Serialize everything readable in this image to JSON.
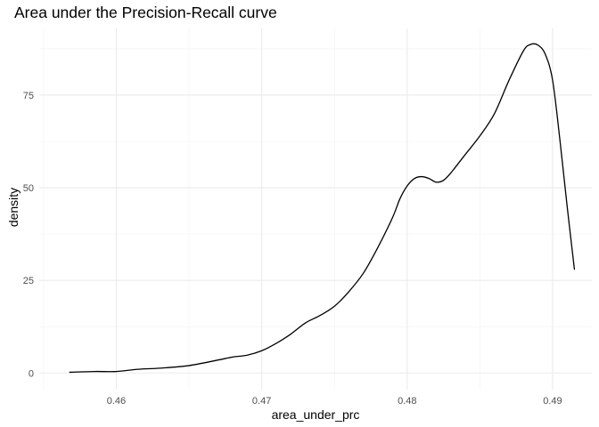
{
  "chart_data": {
    "type": "line",
    "title": "Area under the Precision-Recall curve",
    "xlabel": "area_under_prc",
    "ylabel": "density",
    "xlim": [
      0.4547,
      0.4927
    ],
    "ylim": [
      -4.5,
      93
    ],
    "x_ticks": [
      0.46,
      0.47,
      0.48,
      0.49
    ],
    "x_tick_labels": [
      "0.46",
      "0.47",
      "0.48",
      "0.49"
    ],
    "y_ticks": [
      0,
      25,
      50,
      75
    ],
    "y_tick_labels": [
      "0",
      "25",
      "50",
      "75"
    ],
    "grid": true,
    "legend": "none",
    "series": [
      {
        "color": "#000000",
        "x": [
          0.4568,
          0.4585,
          0.46,
          0.4615,
          0.463,
          0.465,
          0.467,
          0.468,
          0.469,
          0.47,
          0.471,
          0.472,
          0.473,
          0.474,
          0.475,
          0.476,
          0.477,
          0.478,
          0.479,
          0.4795,
          0.48,
          0.4805,
          0.481,
          0.4815,
          0.482,
          0.4825,
          0.483,
          0.484,
          0.485,
          0.486,
          0.487,
          0.488,
          0.4885,
          0.489,
          0.4895,
          0.49,
          0.4905,
          0.491,
          0.4915
        ],
        "y": [
          0.2,
          0.4,
          0.4,
          1.0,
          1.3,
          2.0,
          3.5,
          4.3,
          4.8,
          6.0,
          8.0,
          10.5,
          13.5,
          15.5,
          18.0,
          22.0,
          27.0,
          34.0,
          42.0,
          47.0,
          50.5,
          52.5,
          53.0,
          52.5,
          51.5,
          52.0,
          54.0,
          59.0,
          64.0,
          70.0,
          79.0,
          87.0,
          88.7,
          88.5,
          86.0,
          79.0,
          63.0,
          45.0,
          28.0
        ]
      }
    ]
  }
}
